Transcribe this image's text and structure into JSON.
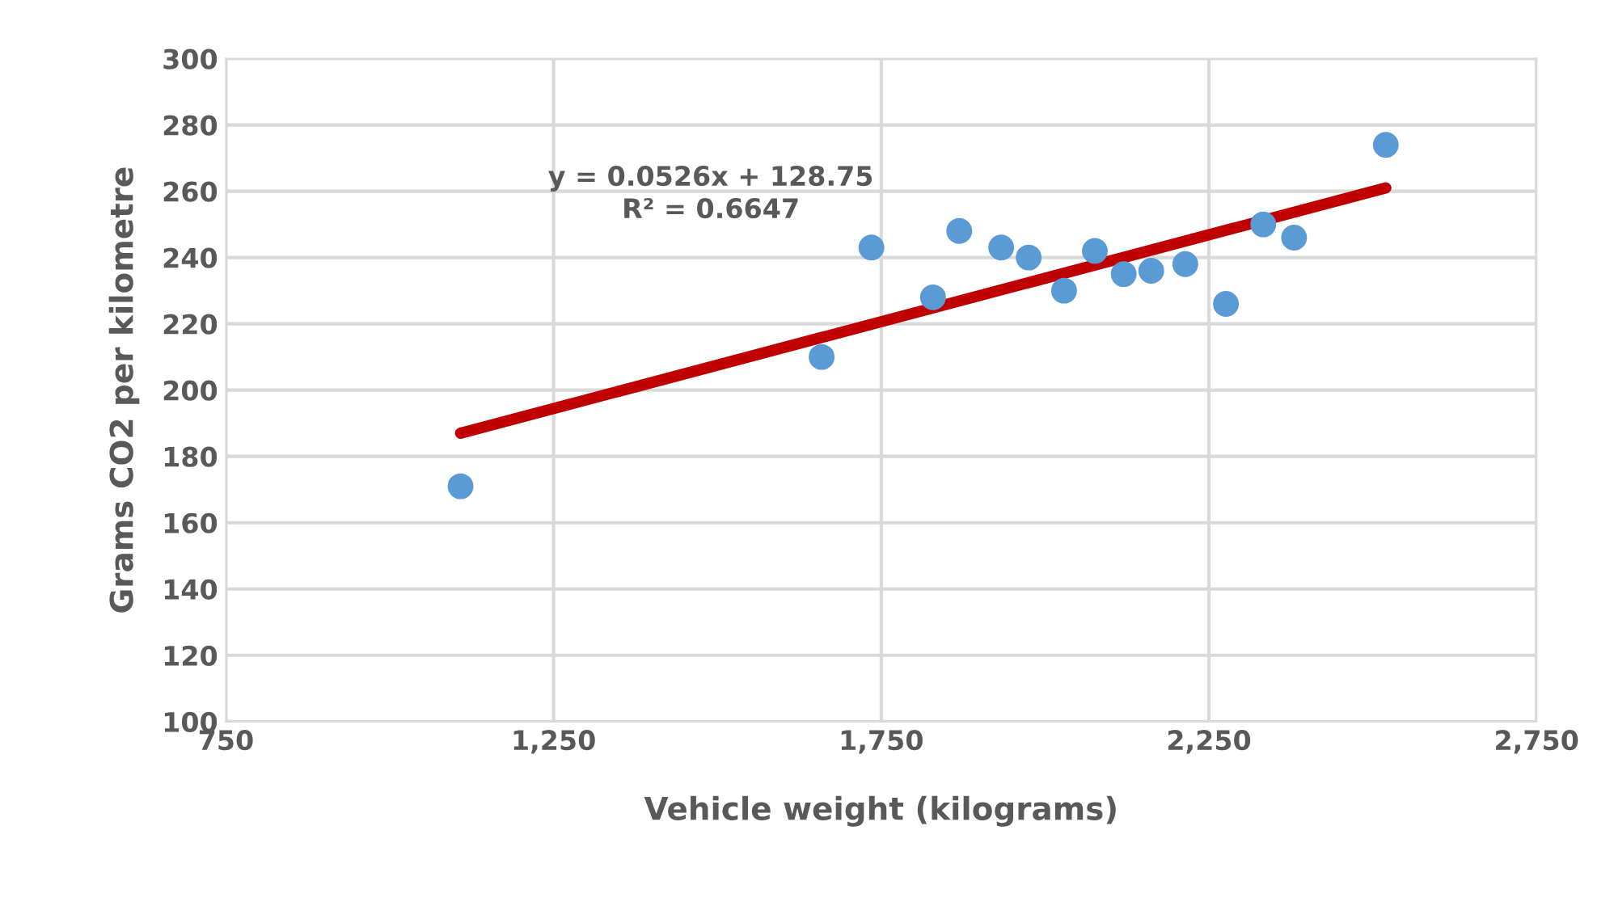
{
  "chart_data": {
    "type": "scatter",
    "xlabel": "Vehicle weight (kilograms)",
    "ylabel": "Grams CO2 per kilometre",
    "series": [
      {
        "marker": "circle",
        "color": "#5b9bd5",
        "x": [
          1108,
          1659,
          1735,
          1829,
          1869,
          1933,
          1975,
          2029,
          2076,
          2120,
          2162,
          2214,
          2276,
          2333,
          2380,
          2520
        ],
        "values": [
          171,
          210,
          243,
          228,
          248,
          243,
          240,
          230,
          242,
          235,
          236,
          238,
          226,
          250,
          246,
          274
        ]
      },
      {
        "type": "line",
        "color": "#c00000",
        "x": [
          1108,
          2520
        ],
        "values": [
          187,
          261
        ]
      }
    ],
    "annotations": [
      "y = 0.0526x + 128.75\nR² = 0.6647"
    ],
    "xlim": [
      750,
      2750
    ],
    "xticks": [
      {
        "value": 750,
        "label": "750"
      },
      {
        "value": 1250,
        "label": "1,250"
      },
      {
        "value": 1750,
        "label": "1,750"
      },
      {
        "value": 2250,
        "label": "2,250"
      },
      {
        "value": 2750,
        "label": "2,750"
      }
    ],
    "ylim": [
      100,
      300
    ],
    "yticks": [
      100,
      120,
      140,
      160,
      180,
      200,
      220,
      240,
      260,
      280,
      300
    ],
    "grid": true,
    "line_style": "solid"
  }
}
